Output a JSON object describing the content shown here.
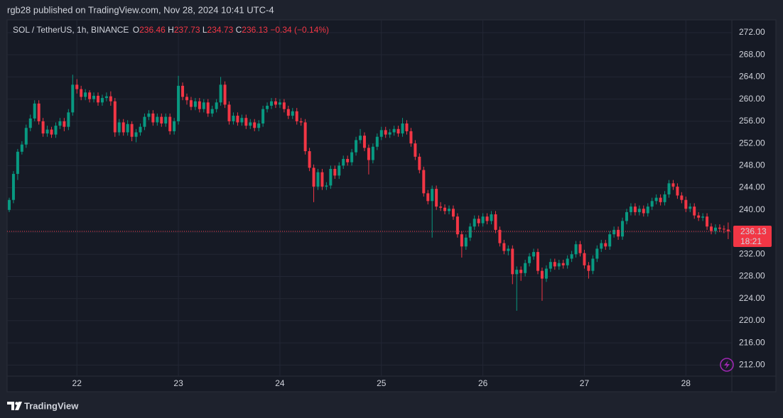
{
  "header": {
    "published": "rgb28 published on TradingView.com, Nov 28, 2024 10:41 UTC-4"
  },
  "footer": {
    "brand": "TradingView"
  },
  "chart_data": {
    "type": "candlestick",
    "symbol": "SOL / TetherUS, 1h, BINANCE",
    "ohlc_labels": [
      "O",
      "H",
      "L",
      "C"
    ],
    "change": "−0.34 (−0.14%)",
    "countdown": "18:21",
    "up_color": "#089981",
    "down_color": "#f23645",
    "grid": true,
    "categories": [
      null,
      null,
      null,
      null,
      null,
      null,
      null,
      null,
      null,
      null,
      null,
      null,
      null,
      null,
      null,
      null,
      "22",
      null,
      null,
      null,
      null,
      null,
      null,
      null,
      null,
      null,
      null,
      null,
      null,
      null,
      null,
      null,
      null,
      null,
      null,
      null,
      null,
      null,
      null,
      null,
      "23",
      null,
      null,
      null,
      null,
      null,
      null,
      null,
      null,
      null,
      null,
      null,
      null,
      null,
      null,
      null,
      null,
      null,
      null,
      null,
      null,
      null,
      null,
      null,
      "24",
      null,
      null,
      null,
      null,
      null,
      null,
      null,
      null,
      null,
      null,
      null,
      null,
      null,
      null,
      null,
      null,
      null,
      null,
      null,
      null,
      null,
      null,
      null,
      "25",
      null,
      null,
      null,
      null,
      null,
      null,
      null,
      null,
      null,
      null,
      null,
      null,
      null,
      null,
      null,
      null,
      null,
      null,
      null,
      null,
      null,
      null,
      null,
      "26",
      null,
      null,
      null,
      null,
      null,
      null,
      null,
      null,
      null,
      null,
      null,
      null,
      null,
      null,
      null,
      null,
      null,
      null,
      null,
      null,
      null,
      null,
      null,
      "27",
      null,
      null,
      null,
      null,
      null,
      null,
      null,
      null,
      null,
      null,
      null,
      null,
      null,
      null,
      null,
      null,
      null,
      null,
      null,
      null,
      null,
      null,
      null,
      "28",
      null,
      null,
      null,
      null,
      null,
      null,
      null,
      null,
      null,
      null
    ],
    "open": [
      240.0,
      241.8,
      246.5,
      250.5,
      251.8,
      254.8,
      256.5,
      259.2,
      256.0,
      253.8,
      254.5,
      253.6,
      255.2,
      256.0,
      255.0,
      257.6,
      262.6,
      261.8,
      260.4,
      261.2,
      260.0,
      260.6,
      259.4,
      260.2,
      260.5,
      259.6,
      254.0,
      255.8,
      254.0,
      255.5,
      253.2,
      254.0,
      255.0,
      256.8,
      257.4,
      255.8,
      256.8,
      255.6,
      256.8,
      254.2,
      256.0,
      262.4,
      260.4,
      259.8,
      258.6,
      259.6,
      258.2,
      259.4,
      257.4,
      258.2,
      259.4,
      262.6,
      259.0,
      256.0,
      257.0,
      255.8,
      256.6,
      255.2,
      255.8,
      254.8,
      255.6,
      258.2,
      258.8,
      259.6,
      259.0,
      259.4,
      258.2,
      257.0,
      257.8,
      256.0,
      255.8,
      250.6,
      247.6,
      244.2,
      246.8,
      244.2,
      244.4,
      247.4,
      246.2,
      248.0,
      249.2,
      248.6,
      250.4,
      252.6,
      253.4,
      251.2,
      249.0,
      251.4,
      253.2,
      254.4,
      253.6,
      254.0,
      254.6,
      253.8,
      255.6,
      254.2,
      252.0,
      249.6,
      247.2,
      243.0,
      241.6,
      243.8,
      240.6,
      240.4,
      239.8,
      240.2,
      238.8,
      235.6,
      233.4,
      235.0,
      237.0,
      238.4,
      237.6,
      238.8,
      238.0,
      239.2,
      236.4,
      234.0,
      232.6,
      233.0,
      228.4,
      229.2,
      228.6,
      230.4,
      231.6,
      232.4,
      229.0,
      227.6,
      229.4,
      230.6,
      229.8,
      230.4,
      230.0,
      231.2,
      232.0,
      233.8,
      232.2,
      230.0,
      229.0,
      231.2,
      233.0,
      234.0,
      233.4,
      235.6,
      236.4,
      235.2,
      238.0,
      239.6,
      240.6,
      239.6,
      240.2,
      239.4,
      240.6,
      241.6,
      242.2,
      241.4,
      242.8,
      244.8,
      244.2,
      242.6,
      241.8,
      240.2,
      240.6,
      239.0,
      238.6,
      238.8,
      237.0,
      236.2,
      236.8,
      236.6,
      236.46
    ],
    "high": [
      242.2,
      247.0,
      251.0,
      252.4,
      255.4,
      257.2,
      259.8,
      259.8,
      256.6,
      255.2,
      255.0,
      255.8,
      256.6,
      256.6,
      258.2,
      264.4,
      263.6,
      262.4,
      261.8,
      261.6,
      261.2,
      261.2,
      260.8,
      261.2,
      261.4,
      260.2,
      256.4,
      256.4,
      256.2,
      256.0,
      254.6,
      255.6,
      257.4,
      258.0,
      258.0,
      257.4,
      257.4,
      257.4,
      257.4,
      256.6,
      264.2,
      263.0,
      261.0,
      260.4,
      260.2,
      260.2,
      260.0,
      260.0,
      258.8,
      260.0,
      264.0,
      263.2,
      259.6,
      257.6,
      257.6,
      257.2,
      257.2,
      256.4,
      256.4,
      256.2,
      258.8,
      259.4,
      260.2,
      260.2,
      260.0,
      260.0,
      258.8,
      258.4,
      258.4,
      256.6,
      256.4,
      251.2,
      248.2,
      247.4,
      247.4,
      245.0,
      248.0,
      248.0,
      248.6,
      249.8,
      249.8,
      251.0,
      253.2,
      254.6,
      254.0,
      251.8,
      252.0,
      253.8,
      255.0,
      255.0,
      254.6,
      255.2,
      255.2,
      256.6,
      256.2,
      254.8,
      252.6,
      250.2,
      247.8,
      243.6,
      244.4,
      244.4,
      241.4,
      241.0,
      240.8,
      240.8,
      239.4,
      236.2,
      235.6,
      237.6,
      239.0,
      239.0,
      239.4,
      239.4,
      239.8,
      239.8,
      237.0,
      234.6,
      233.6,
      233.6,
      229.8,
      229.8,
      231.0,
      232.2,
      233.0,
      233.0,
      229.6,
      230.0,
      231.2,
      231.2,
      231.0,
      231.0,
      231.8,
      232.6,
      234.4,
      234.4,
      232.8,
      230.6,
      231.8,
      233.6,
      234.6,
      234.6,
      236.2,
      237.0,
      237.0,
      238.6,
      240.2,
      241.2,
      241.2,
      240.8,
      240.8,
      241.2,
      242.2,
      242.8,
      242.8,
      243.4,
      245.4,
      245.4,
      244.8,
      243.2,
      242.4,
      241.2,
      241.2,
      239.6,
      239.4,
      239.4,
      237.6,
      237.4,
      237.4,
      237.2,
      237.73
    ],
    "low": [
      239.6,
      241.2,
      245.4,
      250.0,
      251.2,
      254.2,
      256.0,
      255.4,
      253.2,
      253.2,
      253.0,
      253.0,
      254.6,
      254.2,
      254.4,
      257.0,
      261.0,
      259.8,
      259.8,
      259.4,
      259.4,
      258.8,
      258.8,
      259.6,
      258.8,
      253.2,
      253.4,
      253.4,
      253.4,
      252.4,
      252.2,
      253.4,
      254.4,
      256.2,
      255.2,
      255.2,
      255.0,
      255.0,
      253.6,
      253.6,
      255.4,
      259.8,
      259.0,
      258.0,
      258.0,
      257.6,
      257.6,
      256.8,
      256.8,
      257.6,
      258.8,
      258.4,
      255.4,
      255.4,
      255.2,
      255.2,
      254.6,
      254.6,
      254.2,
      254.2,
      255.0,
      257.6,
      258.2,
      258.4,
      258.4,
      257.6,
      256.4,
      256.4,
      255.4,
      255.2,
      250.0,
      247.0,
      241.4,
      243.6,
      243.6,
      243.6,
      243.8,
      245.6,
      245.6,
      247.4,
      248.0,
      248.0,
      249.8,
      252.0,
      250.6,
      246.4,
      248.4,
      250.8,
      252.6,
      253.0,
      253.0,
      253.4,
      253.2,
      253.2,
      253.6,
      251.4,
      249.0,
      246.6,
      242.4,
      241.0,
      235.0,
      240.0,
      239.8,
      239.2,
      239.2,
      238.2,
      235.0,
      231.4,
      232.8,
      234.4,
      236.4,
      237.0,
      237.0,
      237.4,
      237.4,
      235.8,
      233.4,
      232.0,
      231.8,
      226.6,
      221.8,
      227.2,
      228.0,
      229.8,
      231.0,
      228.4,
      223.6,
      227.0,
      228.8,
      229.2,
      229.2,
      229.4,
      229.4,
      230.6,
      231.4,
      231.6,
      229.4,
      227.6,
      228.4,
      230.6,
      232.4,
      232.8,
      232.8,
      235.0,
      234.6,
      234.6,
      237.4,
      239.0,
      239.0,
      239.0,
      238.8,
      238.8,
      240.0,
      241.0,
      240.8,
      240.8,
      242.2,
      243.6,
      242.0,
      241.2,
      239.6,
      239.6,
      238.4,
      238.0,
      238.0,
      236.4,
      235.6,
      235.6,
      236.0,
      235.8,
      234.73
    ],
    "close": [
      241.8,
      246.5,
      250.5,
      251.8,
      254.8,
      256.5,
      259.2,
      256.0,
      253.8,
      254.5,
      253.6,
      255.2,
      256.0,
      255.0,
      257.6,
      262.6,
      261.8,
      260.4,
      261.2,
      260.0,
      260.6,
      259.4,
      260.2,
      260.5,
      259.6,
      254.0,
      255.8,
      254.0,
      255.5,
      253.2,
      254.0,
      255.0,
      256.8,
      257.4,
      255.8,
      256.8,
      255.6,
      256.8,
      254.2,
      256.0,
      262.4,
      260.4,
      259.8,
      258.6,
      259.6,
      258.2,
      259.4,
      257.4,
      258.2,
      259.4,
      262.6,
      259.0,
      256.0,
      257.0,
      255.8,
      256.6,
      255.2,
      255.8,
      254.8,
      255.6,
      258.2,
      258.8,
      259.6,
      259.0,
      259.4,
      258.2,
      257.0,
      257.8,
      256.0,
      255.8,
      250.6,
      247.6,
      244.2,
      246.8,
      244.2,
      244.4,
      247.4,
      246.2,
      248.0,
      249.2,
      248.6,
      250.4,
      252.6,
      253.4,
      251.2,
      249.0,
      251.4,
      253.2,
      254.4,
      253.6,
      254.0,
      254.6,
      253.8,
      255.6,
      254.2,
      252.0,
      249.6,
      247.2,
      243.0,
      241.6,
      243.8,
      240.6,
      240.4,
      239.8,
      240.2,
      238.8,
      235.6,
      233.4,
      235.0,
      237.0,
      238.4,
      237.6,
      238.8,
      238.0,
      239.2,
      236.4,
      234.0,
      232.6,
      233.0,
      228.4,
      229.2,
      228.6,
      230.4,
      231.6,
      232.4,
      229.0,
      227.6,
      229.4,
      230.6,
      229.8,
      230.4,
      230.0,
      231.2,
      232.0,
      233.8,
      232.2,
      230.0,
      229.0,
      231.2,
      233.0,
      234.0,
      233.4,
      235.6,
      236.4,
      235.2,
      238.0,
      239.6,
      240.6,
      239.6,
      240.2,
      239.4,
      240.6,
      241.6,
      242.2,
      241.4,
      242.8,
      244.8,
      244.2,
      242.6,
      241.8,
      240.2,
      240.6,
      239.0,
      238.6,
      238.8,
      237.0,
      236.2,
      236.8,
      236.6,
      236.47,
      236.13
    ],
    "ylim": [
      210,
      274.3
    ],
    "yticks": [
      {
        "value": 212,
        "label": "212.00"
      },
      {
        "value": 216,
        "label": "216.00"
      },
      {
        "value": 220,
        "label": "220.00"
      },
      {
        "value": 224,
        "label": "224.00"
      },
      {
        "value": 228,
        "label": "228.00"
      },
      {
        "value": 232,
        "label": "232.00"
      },
      {
        "value": 236,
        "label": "236.00"
      },
      {
        "value": 240,
        "label": "240.00"
      },
      {
        "value": 244,
        "label": "244.00"
      },
      {
        "value": 248,
        "label": "248.00"
      },
      {
        "value": 252,
        "label": "252.00"
      },
      {
        "value": 256,
        "label": "256.00"
      },
      {
        "value": 260,
        "label": "260.00"
      },
      {
        "value": 264,
        "label": "264.00"
      },
      {
        "value": 268,
        "label": "268.00"
      },
      {
        "value": 272,
        "label": "272.00"
      }
    ]
  }
}
